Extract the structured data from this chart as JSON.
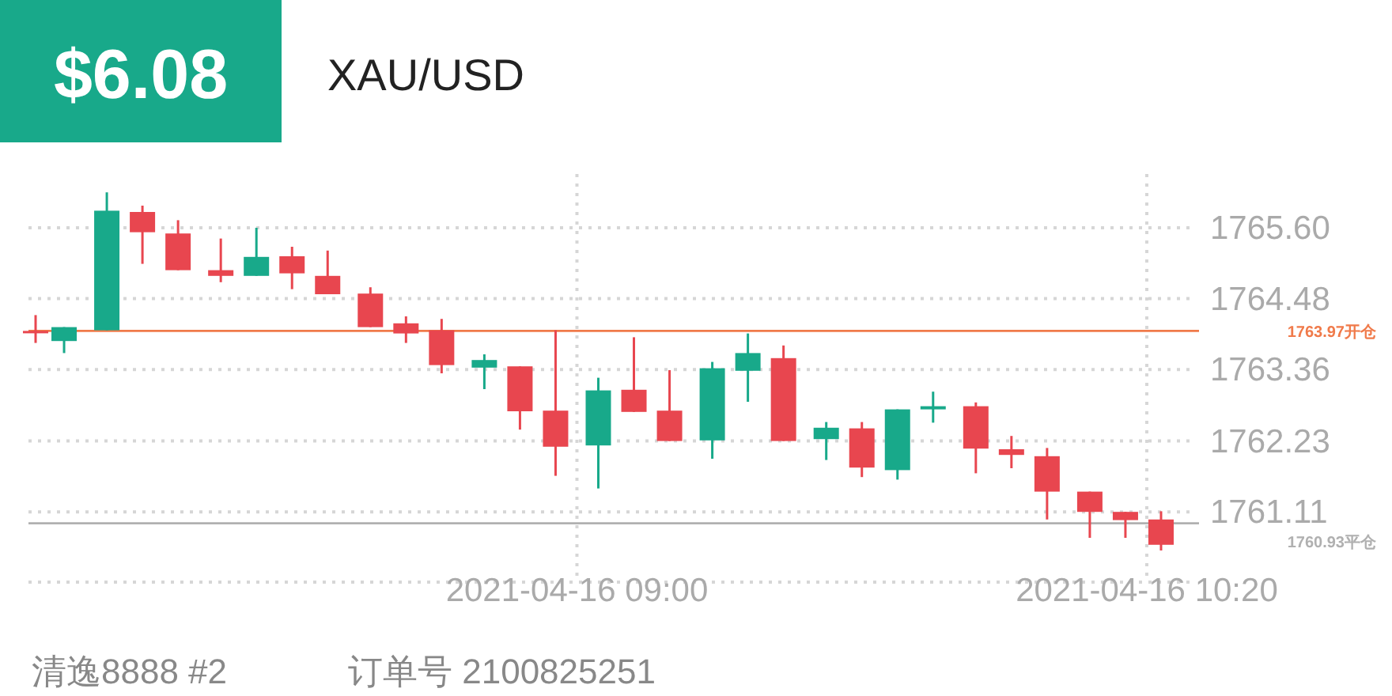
{
  "chart_data": {
    "type": "candlestick",
    "title": "XAU/USD",
    "annotations": [
      "$6.08",
      "清逸8888 #2",
      "订单号 2100825251"
    ],
    "x": [
      "2021-04-16T07:44",
      "2021-04-16T07:48",
      "2021-04-16T07:54",
      "2021-04-16T07:59",
      "2021-04-16T08:04",
      "2021-04-16T08:10",
      "2021-04-16T08:15",
      "2021-04-16T08:20",
      "2021-04-16T08:25",
      "2021-04-16T08:31",
      "2021-04-16T08:36",
      "2021-04-16T08:41",
      "2021-04-16T08:47",
      "2021-04-16T08:52",
      "2021-04-16T08:57",
      "2021-04-16T09:03",
      "2021-04-16T09:08",
      "2021-04-16T09:13",
      "2021-04-16T09:19",
      "2021-04-16T09:24",
      "2021-04-16T09:29",
      "2021-04-16T09:35",
      "2021-04-16T09:40",
      "2021-04-16T09:45",
      "2021-04-16T09:50",
      "2021-04-16T09:56",
      "2021-04-16T10:01",
      "2021-04-16T10:06",
      "2021-04-16T10:12",
      "2021-04-16T10:17",
      "2021-04-16T10:22"
    ],
    "ohlc": [
      [
        1763.97,
        1764.22,
        1763.78,
        1763.97
      ],
      [
        1763.81,
        1764.03,
        1763.62,
        1764.03
      ],
      [
        1763.98,
        1766.16,
        1763.98,
        1765.87
      ],
      [
        1765.85,
        1765.95,
        1765.03,
        1765.53
      ],
      [
        1765.51,
        1765.72,
        1764.93,
        1764.93
      ],
      [
        1764.93,
        1765.43,
        1764.74,
        1764.84
      ],
      [
        1764.84,
        1765.6,
        1764.84,
        1765.14
      ],
      [
        1765.15,
        1765.3,
        1764.63,
        1764.88
      ],
      [
        1764.84,
        1765.24,
        1764.55,
        1764.55
      ],
      [
        1764.56,
        1764.66,
        1764.03,
        1764.03
      ],
      [
        1764.09,
        1764.2,
        1763.78,
        1763.93
      ],
      [
        1763.98,
        1764.16,
        1763.3,
        1763.43
      ],
      [
        1763.39,
        1763.6,
        1763.05,
        1763.51
      ],
      [
        1763.41,
        1763.41,
        1762.41,
        1762.7
      ],
      [
        1762.71,
        1763.98,
        1761.68,
        1762.14
      ],
      [
        1762.16,
        1763.23,
        1761.48,
        1763.03
      ],
      [
        1763.04,
        1763.87,
        1762.69,
        1762.69
      ],
      [
        1762.71,
        1763.35,
        1762.23,
        1762.23
      ],
      [
        1762.24,
        1763.48,
        1761.95,
        1763.38
      ],
      [
        1763.34,
        1763.93,
        1762.85,
        1763.62
      ],
      [
        1763.54,
        1763.74,
        1762.23,
        1762.23
      ],
      [
        1762.26,
        1762.53,
        1761.93,
        1762.44
      ],
      [
        1762.43,
        1762.53,
        1761.66,
        1761.81
      ],
      [
        1761.77,
        1762.73,
        1761.62,
        1762.73
      ],
      [
        1762.73,
        1763.01,
        1762.52,
        1762.78
      ],
      [
        1762.78,
        1762.84,
        1761.72,
        1762.11
      ],
      [
        1762.1,
        1762.31,
        1761.8,
        1762.01
      ],
      [
        1761.99,
        1762.12,
        1760.99,
        1761.43
      ],
      [
        1761.43,
        1761.43,
        1760.7,
        1761.11
      ],
      [
        1761.11,
        1761.11,
        1760.7,
        1760.98
      ],
      [
        1760.99,
        1761.12,
        1760.5,
        1760.59
      ]
    ],
    "colors": [
      "#e8464f",
      "#18a98a",
      "#18a98a",
      "#e8464f",
      "#e8464f",
      "#e8464f",
      "#18a98a",
      "#e8464f",
      "#e8464f",
      "#e8464f",
      "#e8464f",
      "#e8464f",
      "#18a98a",
      "#e8464f",
      "#e8464f",
      "#18a98a",
      "#e8464f",
      "#e8464f",
      "#18a98a",
      "#18a98a",
      "#e8464f",
      "#18a98a",
      "#e8464f",
      "#18a98a",
      "#18a98a",
      "#e8464f",
      "#e8464f",
      "#e8464f",
      "#e8464f",
      "#e8464f",
      "#e8464f"
    ],
    "xlim": [
      "2021-04-16T07:43",
      "2021-04-16T10:26"
    ],
    "xticks": [
      {
        "value": "2021-04-16T09:00",
        "label": "2021-04-16 09:00"
      },
      {
        "value": "2021-04-16T10:20",
        "label": "2021-04-16 10:20"
      }
    ],
    "ylim": [
      1760.0,
      1766.45
    ],
    "yticks": [
      1761.11,
      1762.23,
      1763.36,
      1764.48,
      {
        "value": 1765.6,
        "label": "1765.60"
      }
    ],
    "ref_lines": [
      {
        "axis": "y",
        "value": 1763.97,
        "label": "1763.97开仓",
        "color": "#f07a4a"
      },
      {
        "axis": "y",
        "value": 1760.93,
        "label": "1760.93平仓",
        "color": "#b0b0b0"
      }
    ],
    "grid": true
  }
}
